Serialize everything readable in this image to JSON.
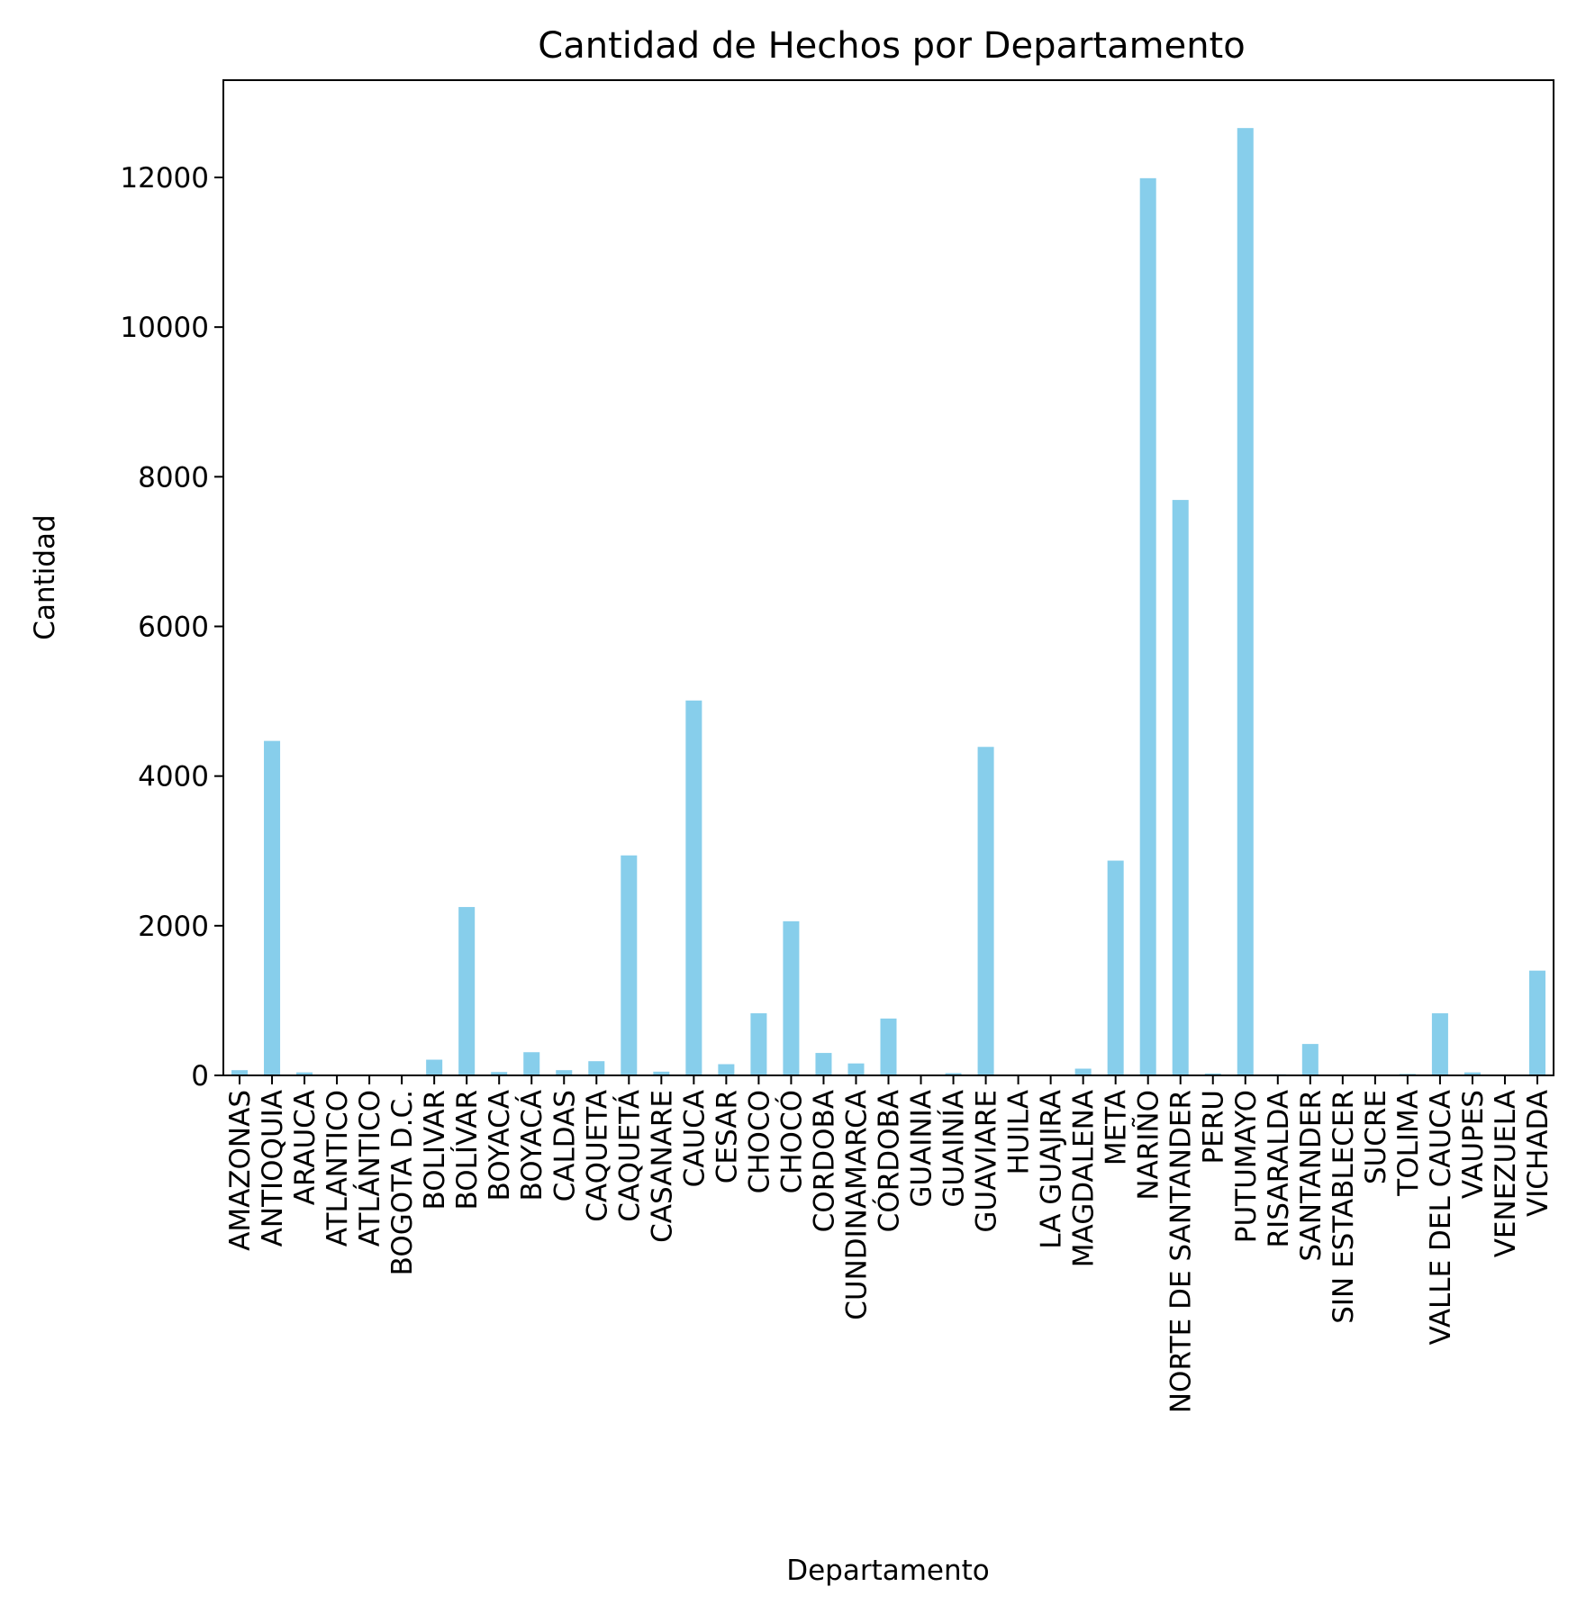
{
  "colors": {
    "bar": "#87ceeb",
    "axis": "#000000",
    "background": "#ffffff"
  },
  "chart_data": {
    "type": "bar",
    "title": "Cantidad de Hechos por Departamento",
    "xlabel": "Departamento",
    "ylabel": "Cantidad",
    "ylim": [
      0,
      13300
    ],
    "yticks": [
      0,
      2000,
      4000,
      6000,
      8000,
      10000,
      12000
    ],
    "grid": false,
    "legend": "none",
    "categories": [
      "AMAZONAS",
      "ANTIOQUIA",
      "ARAUCA",
      "ATLANTICO",
      "ATLÁNTICO",
      "BOGOTA D.C.",
      "BOLIVAR",
      "BOLÍVAR",
      "BOYACA",
      "BOYACÁ",
      "CALDAS",
      "CAQUETA",
      "CAQUETÁ",
      "CASANARE",
      "CAUCA",
      "CESAR",
      "CHOCO",
      "CHOCÓ",
      "CORDOBA",
      "CUNDINAMARCA",
      "CÓRDOBA",
      "GUAINIA",
      "GUAINÍA",
      "GUAVIARE",
      "HUILA",
      "LA GUAJIRA",
      "MAGDALENA",
      "META",
      "NARIÑO",
      "NORTE DE SANTANDER",
      "PERU",
      "PUTUMAYO",
      "RISARALDA",
      "SANTANDER",
      "SIN ESTABLECER",
      "SUCRE",
      "TOLIMA",
      "VALLE DEL CAUCA",
      "VAUPES",
      "VENEZUELA",
      "VICHADA"
    ],
    "values": [
      70,
      4470,
      40,
      5,
      5,
      5,
      210,
      2250,
      45,
      310,
      70,
      190,
      2940,
      50,
      5010,
      150,
      830,
      2060,
      300,
      160,
      760,
      8,
      30,
      4390,
      5,
      5,
      90,
      2870,
      11990,
      7690,
      25,
      12660,
      15,
      420,
      8,
      5,
      20,
      830,
      40,
      10,
      1400
    ]
  }
}
